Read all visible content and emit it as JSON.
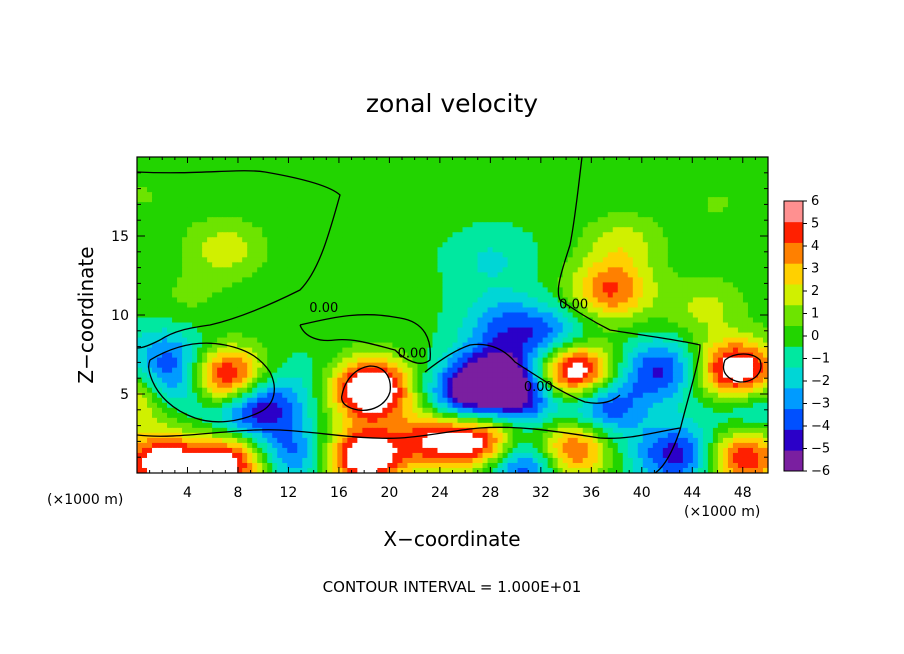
{
  "chart_data": {
    "type": "heatmap",
    "title": "zonal velocity",
    "xlabel": "X−coordinate",
    "ylabel": "Z−coordinate",
    "x_unit": "(×1000 m)",
    "y_unit": "(×1000 m)",
    "xlim": [
      0,
      50
    ],
    "ylim": [
      0,
      20
    ],
    "x_ticks": [
      4,
      8,
      12,
      16,
      20,
      24,
      28,
      32,
      36,
      40,
      44,
      48
    ],
    "x_tick_labels": [
      "4",
      "8",
      "12",
      "16",
      "20",
      "24",
      "28",
      "32",
      "36",
      "40",
      "44",
      "48"
    ],
    "y_ticks": [
      5,
      10,
      15
    ],
    "y_tick_labels": [
      "5",
      "10",
      "15"
    ],
    "footer": "CONTOUR INTERVAL = 1.000E+01",
    "colorbar": {
      "min": -6,
      "max": 6,
      "labels": [
        "6",
        "5",
        "4",
        "3",
        "2",
        "1",
        "0",
        "−1",
        "−2",
        "−3",
        "−4",
        "−5",
        "−6"
      ],
      "colors": [
        "#7a1fa0",
        "#2b00c8",
        "#0050ff",
        "#009bff",
        "#00d6d6",
        "#00e8a0",
        "#22d400",
        "#6de400",
        "#d0f000",
        "#ffd000",
        "#ff8000",
        "#ff2000",
        "#ff9090"
      ]
    },
    "contour_labels": [
      {
        "text": "0.00",
        "x": 14.8,
        "z": 10.2
      },
      {
        "text": "0.00",
        "x": 21.8,
        "z": 7.3
      },
      {
        "text": "0.00",
        "x": 31.8,
        "z": 5.2
      },
      {
        "text": "0.00",
        "x": 34.6,
        "z": 10.4
      }
    ],
    "features": [
      {
        "x": 0.5,
        "z": 17.5,
        "u": 0.8
      },
      {
        "x": 7.0,
        "z": 14.2,
        "u": 2.3
      },
      {
        "x": 4.0,
        "z": 11.0,
        "u": 0.9
      },
      {
        "x": 16.0,
        "z": 13.5,
        "u": 0.2
      },
      {
        "x": 23.0,
        "z": 17.5,
        "u": 0.3
      },
      {
        "x": 28.0,
        "z": 13.5,
        "u": -1.4
      },
      {
        "x": 29.0,
        "z": 9.5,
        "u": -2.8
      },
      {
        "x": 28.5,
        "z": 6.5,
        "u": -4.8
      },
      {
        "x": 26.0,
        "z": 4.8,
        "u": -5.6
      },
      {
        "x": 30.5,
        "z": 4.8,
        "u": -5.2
      },
      {
        "x": 37.5,
        "z": 11.5,
        "u": 4.8
      },
      {
        "x": 38.5,
        "z": 14.5,
        "u": 2.2
      },
      {
        "x": 45.0,
        "z": 10.5,
        "u": 2.0
      },
      {
        "x": 46.0,
        "z": 17.0,
        "u": 0.8
      },
      {
        "x": 7.0,
        "z": 6.0,
        "u": 7.5
      },
      {
        "x": 3.0,
        "z": 5.5,
        "u": -4.5
      },
      {
        "x": 10.0,
        "z": 4.5,
        "u": -4.5
      },
      {
        "x": 2.5,
        "z": 7.5,
        "u": -2.8
      },
      {
        "x": 8.0,
        "z": 3.2,
        "u": -2.5
      },
      {
        "x": 18.5,
        "z": 5.3,
        "u": 8.5
      },
      {
        "x": 14.0,
        "z": 6.0,
        "u": -0.8
      },
      {
        "x": 34.5,
        "z": 6.5,
        "u": 8.5
      },
      {
        "x": 37.0,
        "z": 4.2,
        "u": -4.5
      },
      {
        "x": 33.0,
        "z": 8.5,
        "u": -4.0
      },
      {
        "x": 41.5,
        "z": 6.5,
        "u": -4.5
      },
      {
        "x": 47.5,
        "z": 6.5,
        "u": 7.5
      },
      {
        "x": 48.5,
        "z": 4.0,
        "u": -2.2
      },
      {
        "x": 0.3,
        "z": 4.8,
        "u": 4.0
      },
      {
        "x": 2.0,
        "z": 0.6,
        "u": 7.0
      },
      {
        "x": 7.5,
        "z": 0.8,
        "u": 7.0
      },
      {
        "x": 12.0,
        "z": 1.2,
        "u": -4.0
      },
      {
        "x": 18.0,
        "z": 1.0,
        "u": 7.5
      },
      {
        "x": 23.5,
        "z": 2.2,
        "u": 5.0
      },
      {
        "x": 27.5,
        "z": 2.0,
        "u": 6.5
      },
      {
        "x": 30.5,
        "z": 0.6,
        "u": -5.5
      },
      {
        "x": 34.5,
        "z": 1.5,
        "u": 6.0
      },
      {
        "x": 38.0,
        "z": 1.0,
        "u": -0.8
      },
      {
        "x": 43.0,
        "z": 1.2,
        "u": -5.0
      },
      {
        "x": 48.0,
        "z": 1.0,
        "u": 6.0
      }
    ]
  }
}
